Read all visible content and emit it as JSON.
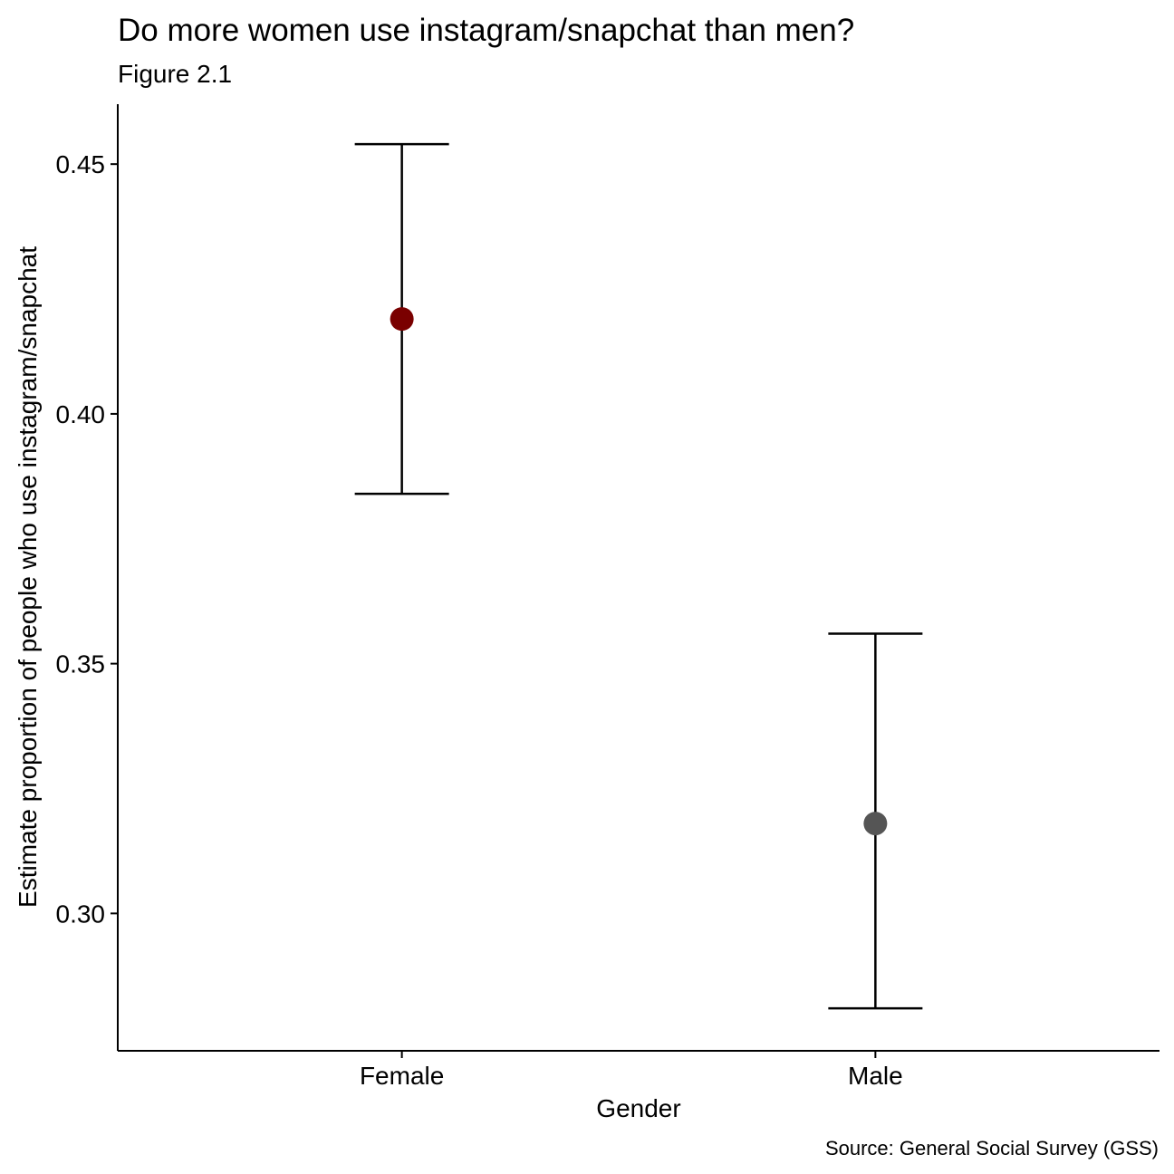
{
  "chart_data": {
    "type": "scatter",
    "title": "Do more women use instagram/snapchat than men?",
    "subtitle": "Figure 2.1",
    "xlabel": "Gender",
    "ylabel": "Estimate proportion of people who use instagram/snapchat",
    "caption": "Source: General Social Survey (GSS)",
    "categories": [
      "Female",
      "Male"
    ],
    "values": [
      0.419,
      0.318
    ],
    "ci_lower": [
      0.384,
      0.281
    ],
    "ci_upper": [
      0.454,
      0.356
    ],
    "point_colors": [
      "#7a0000",
      "#555555"
    ],
    "error_bar_color": "#000000",
    "ylim": [
      0.2725,
      0.462
    ],
    "yticks": [
      0.3,
      0.35,
      0.4,
      0.45
    ],
    "ytick_labels": [
      "0.30",
      "0.35",
      "0.40",
      "0.45"
    ],
    "grid": false,
    "legend": "none"
  }
}
